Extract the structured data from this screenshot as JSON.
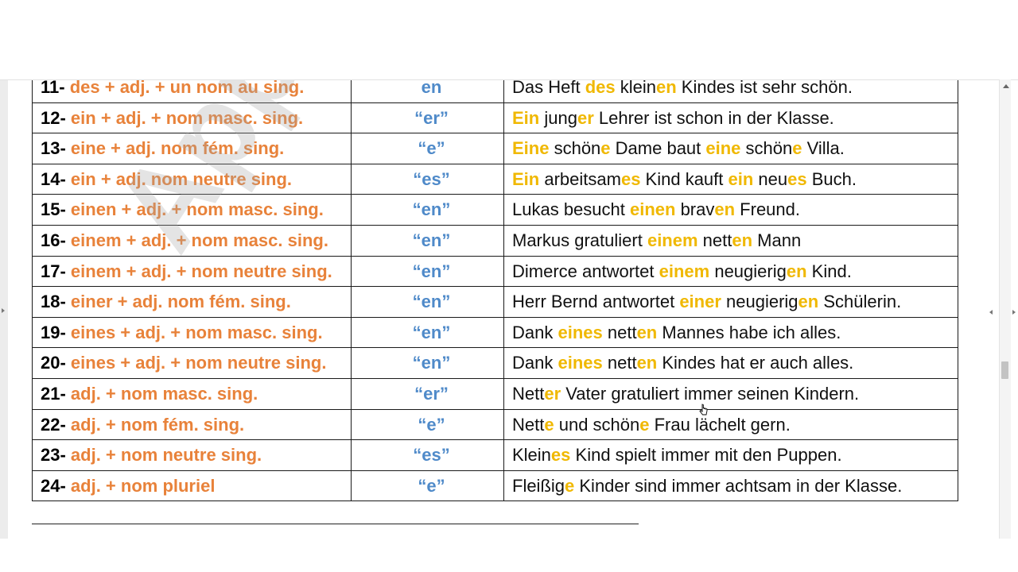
{
  "watermark": "Apprendre l",
  "rows": [
    {
      "num": "11-",
      "rule": "des + adj. + un nom au sing.",
      "ending": "en",
      "example": [
        {
          "t": "Das Heft "
        },
        {
          "t": "des",
          "h": true
        },
        {
          "t": " klein"
        },
        {
          "t": "en",
          "h": true
        },
        {
          "t": " Kindes ist sehr schön."
        }
      ]
    },
    {
      "num": "12-",
      "rule": "ein + adj. + nom masc. sing.",
      "ending": "“er”",
      "example": [
        {
          "t": "Ein",
          "h": true
        },
        {
          "t": " jung"
        },
        {
          "t": "er",
          "h": true
        },
        {
          "t": " Lehrer ist schon in der Klasse."
        }
      ]
    },
    {
      "num": "13-",
      "rule": "eine + adj. nom fém. sing.",
      "ending": "“e”",
      "example": [
        {
          "t": "Eine",
          "h": true
        },
        {
          "t": " schön"
        },
        {
          "t": "e",
          "h": true
        },
        {
          "t": " Dame baut "
        },
        {
          "t": "eine",
          "h": true
        },
        {
          "t": " schön"
        },
        {
          "t": "e",
          "h": true
        },
        {
          "t": " Villa."
        }
      ]
    },
    {
      "num": "14-",
      "rule": "ein + adj. nom neutre sing.",
      "ending": "“es”",
      "example": [
        {
          "t": "Ein",
          "h": true
        },
        {
          "t": " arbeitsam"
        },
        {
          "t": "es",
          "h": true
        },
        {
          "t": " Kind kauft "
        },
        {
          "t": "ein",
          "h": true
        },
        {
          "t": " neu"
        },
        {
          "t": "es",
          "h": true
        },
        {
          "t": " Buch."
        }
      ]
    },
    {
      "num": "15-",
      "rule": "einen + adj. + nom masc. sing.",
      "ending": "“en”",
      "example": [
        {
          "t": "Lukas besucht "
        },
        {
          "t": "einen",
          "h": true
        },
        {
          "t": " brav"
        },
        {
          "t": "en",
          "h": true
        },
        {
          "t": " Freund."
        }
      ]
    },
    {
      "num": "16-",
      "rule": "einem + adj. + nom masc. sing.",
      "ending": "“en”",
      "example": [
        {
          "t": "Markus gratuliert "
        },
        {
          "t": "einem",
          "h": true
        },
        {
          "t": " nett"
        },
        {
          "t": "en",
          "h": true
        },
        {
          "t": " Mann"
        }
      ]
    },
    {
      "num": "17-",
      "rule": "einem + adj. + nom neutre sing.",
      "ending": "“en”",
      "example": [
        {
          "t": "Dimerce antwortet "
        },
        {
          "t": "einem",
          "h": true
        },
        {
          "t": " neugierig"
        },
        {
          "t": "en",
          "h": true
        },
        {
          "t": " Kind."
        }
      ]
    },
    {
      "num": "18-",
      "rule": "einer + adj. nom fém. sing.",
      "ending": "“en”",
      "example": [
        {
          "t": "Herr Bernd antwortet "
        },
        {
          "t": "einer",
          "h": true
        },
        {
          "t": " neugierig"
        },
        {
          "t": "en",
          "h": true
        },
        {
          "t": " Schülerin."
        }
      ]
    },
    {
      "num": "19-",
      "rule": "eines + adj. + nom masc. sing.",
      "ending": "“en”",
      "example": [
        {
          "t": "Dank "
        },
        {
          "t": "eines",
          "h": true
        },
        {
          "t": " nett"
        },
        {
          "t": "en",
          "h": true
        },
        {
          "t": " Mannes habe ich alles."
        }
      ]
    },
    {
      "num": "20-",
      "rule": "eines + adj. + nom neutre sing.",
      "ending": "“en”",
      "example": [
        {
          "t": "Dank "
        },
        {
          "t": "eines",
          "h": true
        },
        {
          "t": " nett"
        },
        {
          "t": "en",
          "h": true
        },
        {
          "t": " Kindes hat er auch alles."
        }
      ]
    },
    {
      "num": "21-",
      "rule": "adj. + nom masc. sing.",
      "ending": "“er”",
      "example": [
        {
          "t": "Nett"
        },
        {
          "t": "er",
          "h": true
        },
        {
          "t": " Vater gratuliert immer seinen Kindern."
        }
      ]
    },
    {
      "num": "22-",
      "rule": "adj. + nom fém. sing.",
      "ending": "“e”",
      "example": [
        {
          "t": "Nett"
        },
        {
          "t": "e",
          "h": true
        },
        {
          "t": " und schön"
        },
        {
          "t": "e",
          "h": true
        },
        {
          "t": " Frau lächelt gern."
        }
      ]
    },
    {
      "num": "23-",
      "rule": "adj. + nom neutre sing.",
      "ending": "“es”",
      "example": [
        {
          "t": "Klein"
        },
        {
          "t": "es",
          "h": true
        },
        {
          "t": " Kind spielt immer mit den Puppen."
        }
      ]
    },
    {
      "num": "24-",
      "rule": "adj. + nom pluriel",
      "ending": "“e”",
      "example": [
        {
          "t": "Fleißig"
        },
        {
          "t": "e",
          "h": true
        },
        {
          "t": " Kinder sind immer achtsam in der Klasse."
        }
      ]
    }
  ],
  "colors": {
    "rule": "#e8823a",
    "ending": "#4f8ac9",
    "highlight": "#f0b800",
    "text": "#111111"
  }
}
